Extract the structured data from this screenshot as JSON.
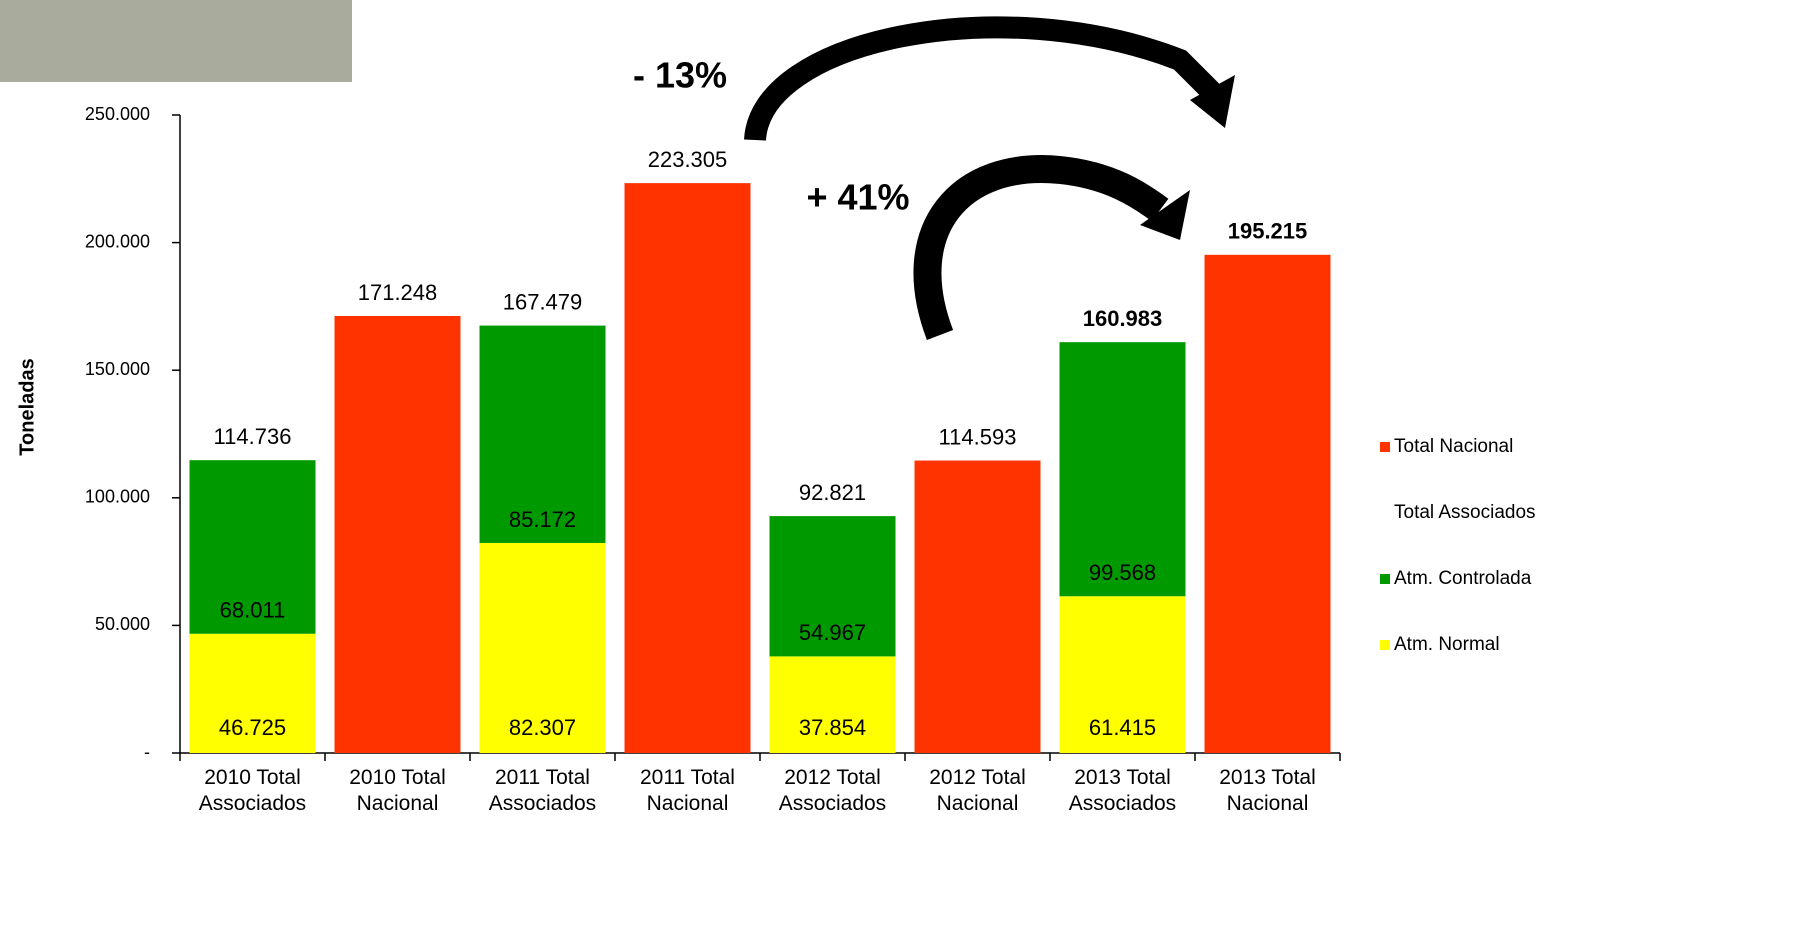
{
  "chart_data": {
    "type": "bar",
    "y_label": "Toneladas",
    "categories": [
      "2010 Total Associados",
      "2010 Total Nacional",
      "2011 Total Associados",
      "2011 Total Nacional",
      "2012 Total Associados",
      "2012 Total Nacional",
      "2013 Total Associados",
      "2013 Total Nacional"
    ],
    "series": [
      {
        "name": "Atm. Normal",
        "color": "#ffff00",
        "values": [
          46725,
          null,
          82307,
          null,
          37854,
          null,
          61415,
          null
        ],
        "value_labels": [
          "46.725",
          null,
          "82.307",
          null,
          "37.854",
          null,
          "61.415",
          null
        ]
      },
      {
        "name": "Atm. Controlada",
        "color": "#009900",
        "values": [
          68011,
          null,
          85172,
          null,
          54967,
          null,
          99568,
          null
        ],
        "value_labels": [
          "68.011",
          null,
          "85.172",
          null,
          "54.967",
          null,
          "99.568",
          null
        ]
      },
      {
        "name": "Total Associados",
        "values": [
          114736,
          null,
          167479,
          null,
          92821,
          null,
          160983,
          null
        ],
        "value_labels": [
          "114.736",
          null,
          "167.479",
          null,
          "92.821",
          null,
          "160.983",
          null
        ],
        "bold_indices": [
          6
        ]
      },
      {
        "name": "Total Nacional",
        "color": "#ff3300",
        "values": [
          null,
          171248,
          null,
          223305,
          null,
          114593,
          null,
          195215
        ],
        "value_labels": [
          null,
          "171.248",
          null,
          "223.305",
          null,
          "114.593",
          null,
          "195.215"
        ],
        "bold_indices": [
          7
        ]
      }
    ],
    "ylim": [
      0,
      250000
    ],
    "yticks": [
      {
        "value": 0,
        "label": "-"
      },
      {
        "value": 50000,
        "label": "50.000"
      },
      {
        "value": 100000,
        "label": "100.000"
      },
      {
        "value": 150000,
        "label": "150.000"
      },
      {
        "value": 200000,
        "label": "200.000"
      },
      {
        "value": 250000,
        "label": "250.000"
      }
    ],
    "annotations": [
      "- 13%",
      "+ 41%"
    ],
    "legend": "right"
  }
}
